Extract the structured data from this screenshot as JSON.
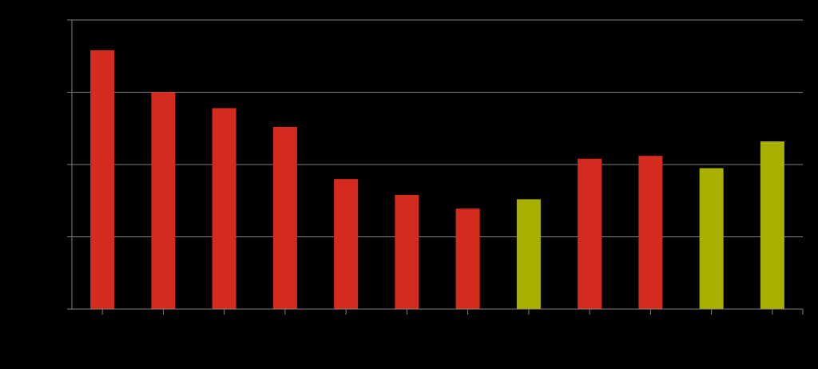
{
  "colors": {
    "background": "#000000",
    "grid": "#7f7f7f",
    "axis": "#7f7f7f",
    "bar_red": "#d42b1e",
    "bar_olive": "#a8b000"
  },
  "chart_data": {
    "type": "bar",
    "title": "",
    "xlabel": "",
    "ylabel": "",
    "categories": [
      "",
      "",
      "",
      "",
      "",
      "",
      "",
      "",
      "",
      "",
      "",
      ""
    ],
    "values": [
      3.58,
      3.0,
      2.78,
      2.52,
      1.8,
      1.58,
      1.39,
      1.52,
      2.08,
      2.12,
      1.95,
      2.32
    ],
    "bar_colors": [
      "red",
      "red",
      "red",
      "red",
      "red",
      "red",
      "red",
      "olive",
      "red",
      "red",
      "olive",
      "olive"
    ],
    "ylim": [
      0,
      4
    ],
    "y_gridlines": [
      1,
      2,
      3,
      4
    ],
    "grid": true,
    "tick_labels_visible": false
  }
}
